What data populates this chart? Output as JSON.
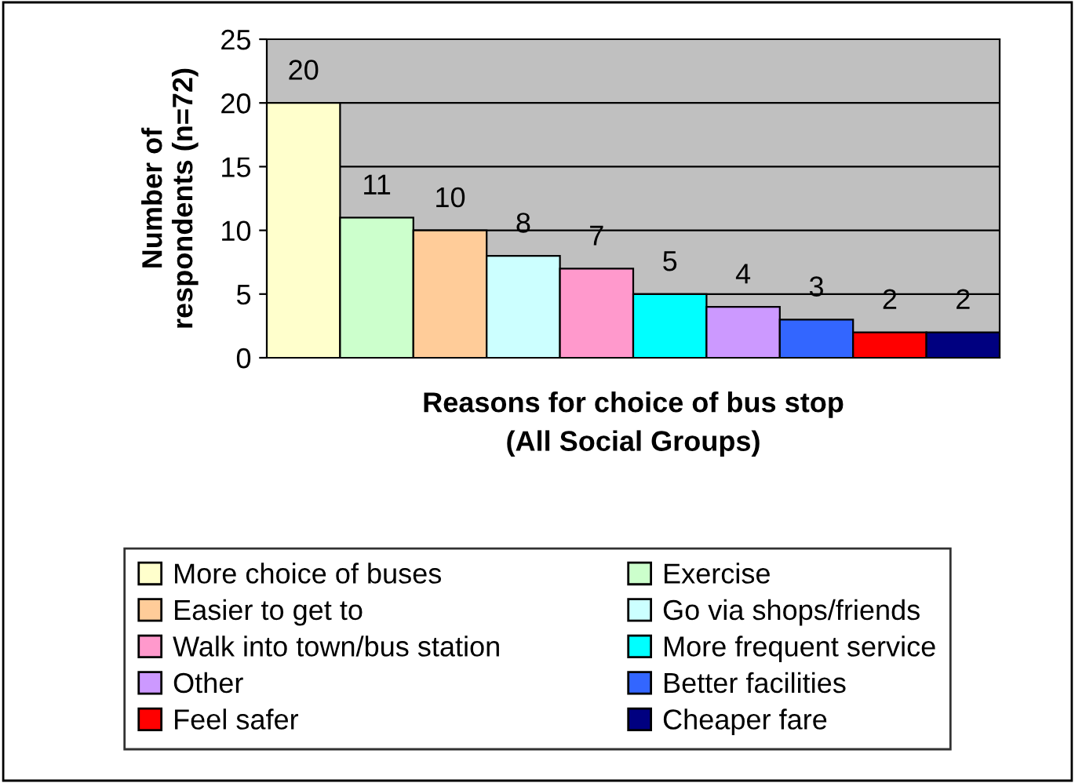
{
  "chart_data": {
    "type": "bar",
    "xlabel": "Reasons for choice of bus stop\n(All Social Groups)",
    "ylabel": "Number of\nrespondents (n=72)",
    "categories": [
      null
    ],
    "series": [
      {
        "name": "More choice of buses",
        "color": "#ffffcc",
        "values": [
          20
        ]
      },
      {
        "name": "Exercise",
        "color": "#ccffcc",
        "values": [
          11
        ]
      },
      {
        "name": "Easier to get to",
        "color": "#ffcc99",
        "values": [
          10
        ]
      },
      {
        "name": "Go via shops/friends",
        "color": "#ccffff",
        "values": [
          8
        ]
      },
      {
        "name": "Walk into town/bus station",
        "color": "#ff99cc",
        "values": [
          7
        ]
      },
      {
        "name": "More frequent service",
        "color": "#00ffff",
        "values": [
          5
        ]
      },
      {
        "name": "Other",
        "color": "#cc99ff",
        "values": [
          4
        ]
      },
      {
        "name": "Better facilities",
        "color": "#3366ff",
        "values": [
          3
        ]
      },
      {
        "name": "Feel safer",
        "color": "#ff0000",
        "values": [
          2
        ]
      },
      {
        "name": "Cheaper fare",
        "color": "#000080",
        "values": [
          2
        ]
      }
    ],
    "ylim": [
      0,
      25
    ],
    "yticks": [
      0,
      5,
      10,
      15,
      20,
      25
    ],
    "grid": "y",
    "legend": "bottom",
    "data_labels": true
  }
}
